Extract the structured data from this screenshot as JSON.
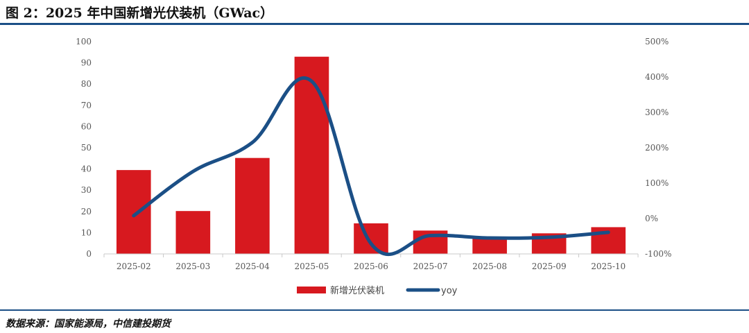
{
  "figure_title": "图 2：2025 年中国新增光伏装机（GWac）",
  "source": "数据来源：国家能源局，中信建投期货",
  "colors": {
    "bar": "#d7191f",
    "line": "#1b4f86",
    "rule": "#1b4f86"
  },
  "chart_data": {
    "type": "bar",
    "categories": [
      "2025-02",
      "2025-03",
      "2025-04",
      "2025-05",
      "2025-06",
      "2025-07",
      "2025-08",
      "2025-09",
      "2025-10"
    ],
    "series": [
      {
        "name": "新增光伏装机",
        "type": "bar",
        "axis": "left",
        "values": [
          39.5,
          20.2,
          45.2,
          92.9,
          14.4,
          11.0,
          7.4,
          9.7,
          12.6
        ]
      },
      {
        "name": "yoy",
        "type": "line",
        "axis": "right",
        "values": [
          8,
          133,
          215,
          388,
          -71,
          -48,
          -55,
          -53,
          -39
        ]
      }
    ],
    "ylim": [
      0,
      100
    ],
    "yticks": [
      "0",
      "10",
      "20",
      "30",
      "40",
      "50",
      "60",
      "70",
      "80",
      "90",
      "100"
    ],
    "y2lim": [
      -100,
      500
    ],
    "y2ticks": [
      "-100%",
      "0%",
      "100%",
      "200%",
      "300%",
      "400%",
      "500%"
    ],
    "legend_position": "bottom"
  }
}
